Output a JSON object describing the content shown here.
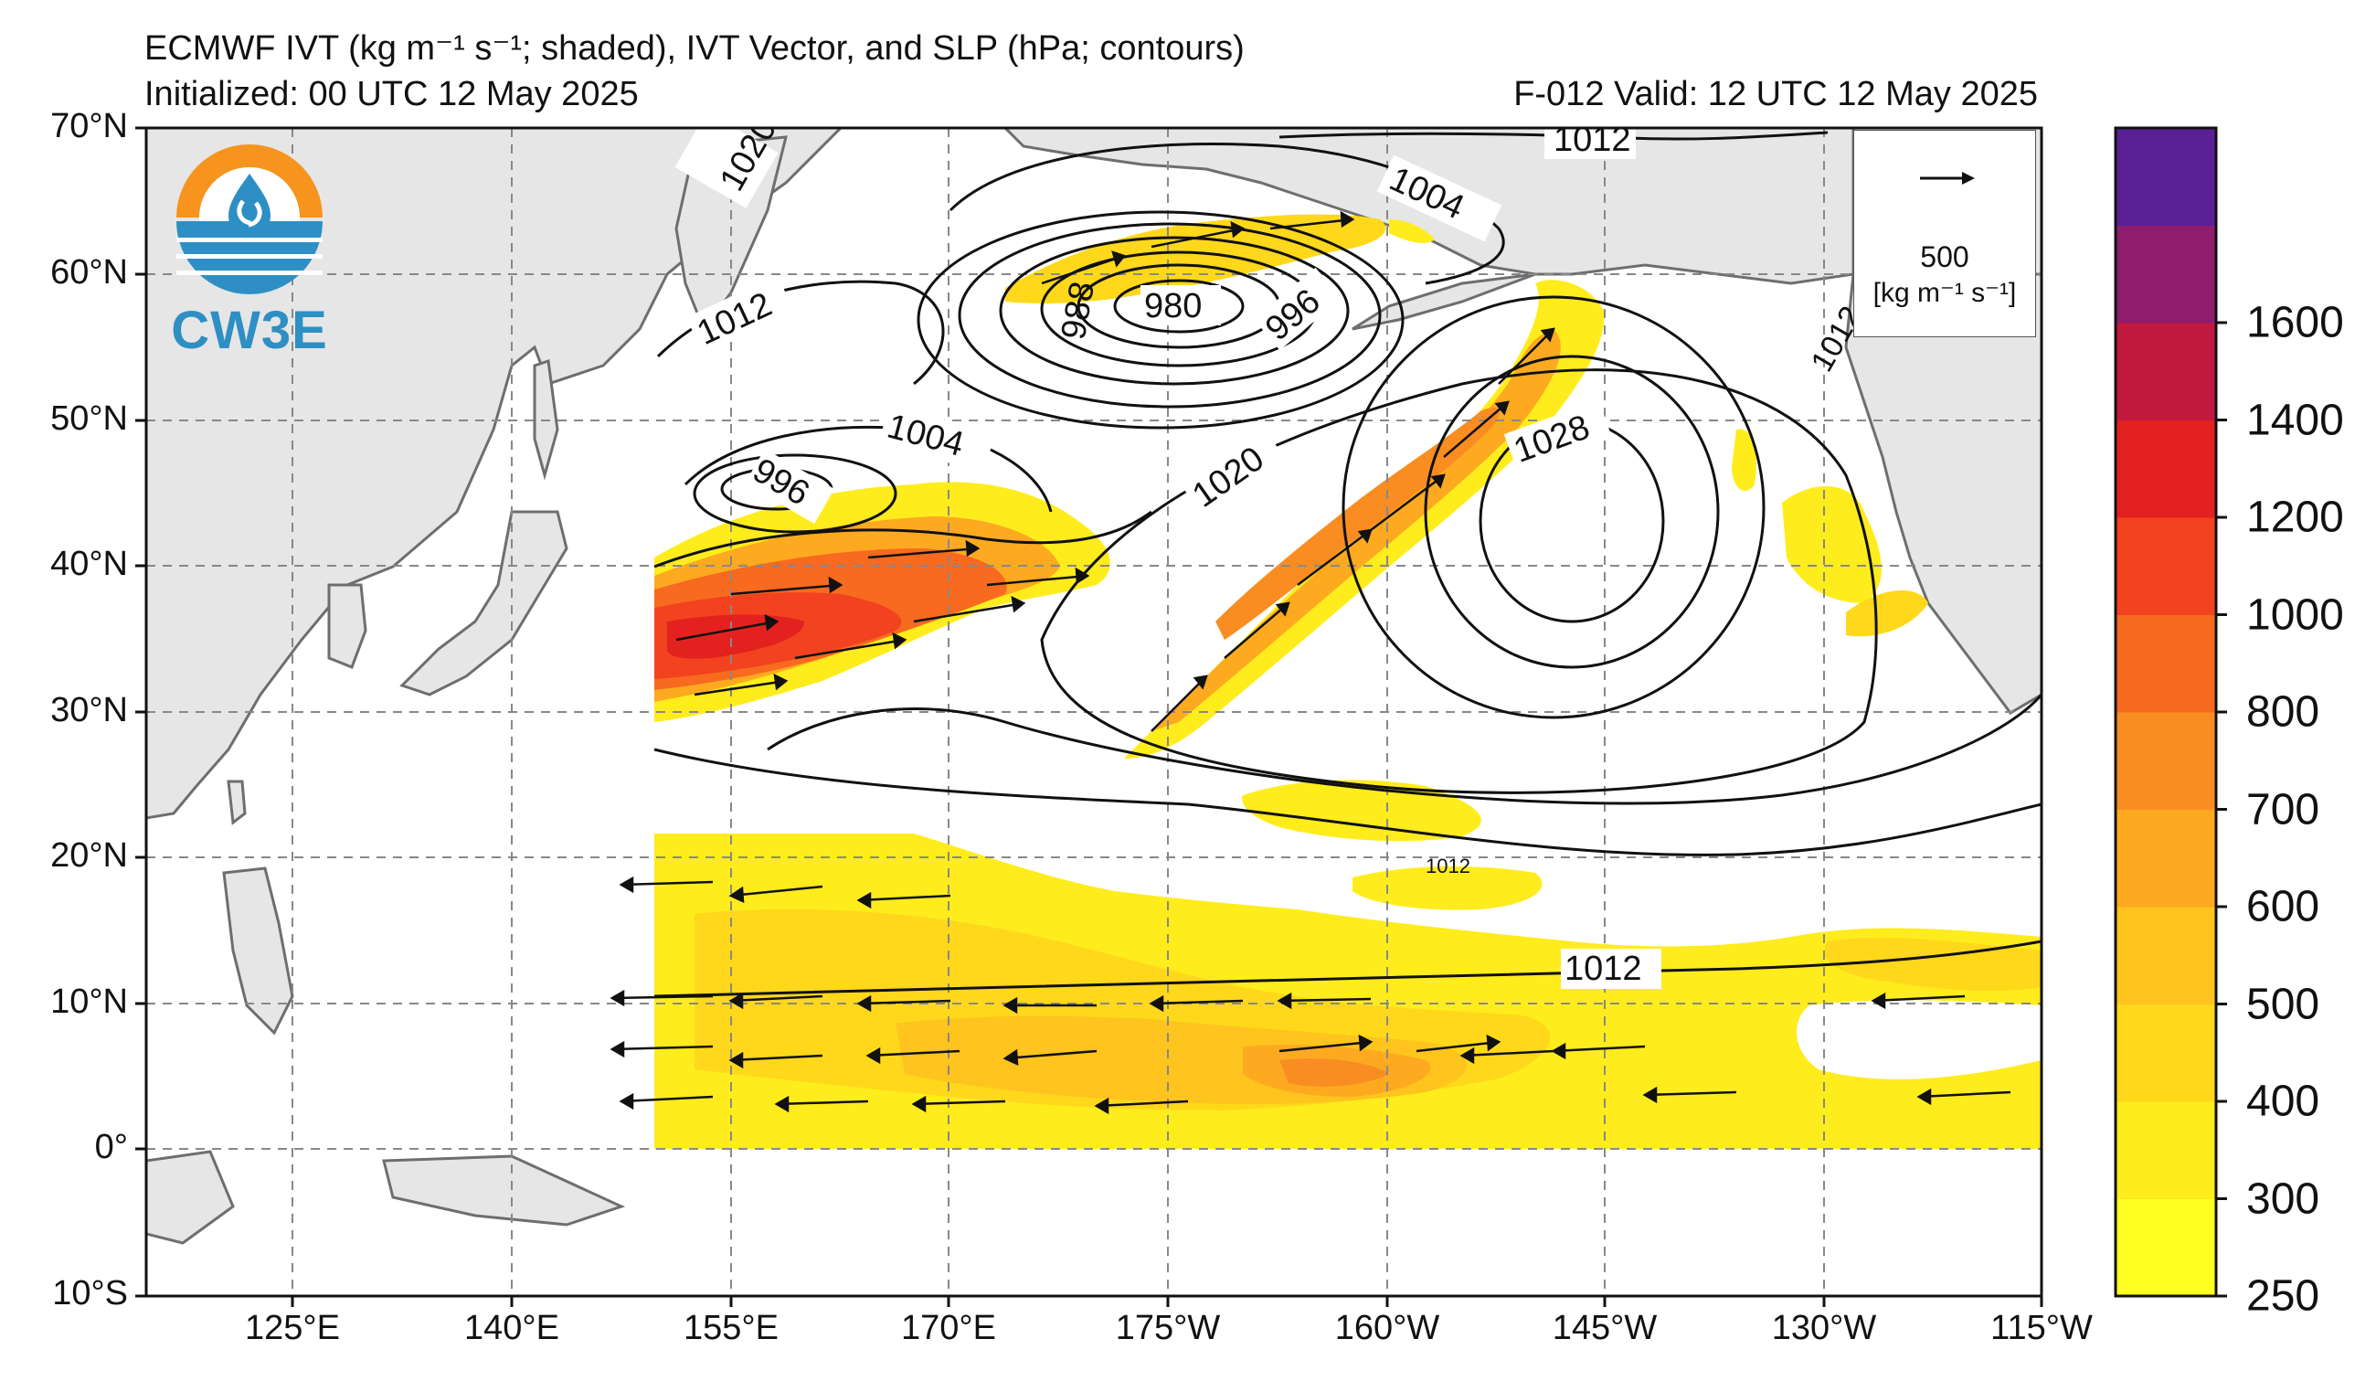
{
  "title": {
    "line1": "ECMWF IVT (kg m⁻¹ s⁻¹; shaded), IVT Vector, and SLP (hPa; contours)",
    "line2": "Initialized: 00 UTC 12 May 2025",
    "valid": "F-012  Valid: 12 UTC 12 May 2025"
  },
  "logo": {
    "text": "CW3E",
    "colors": {
      "orange": "#f7941d",
      "blue": "#2e8fc4"
    }
  },
  "map": {
    "lat_labels": [
      "70°N",
      "60°N",
      "50°N",
      "40°N",
      "30°N",
      "20°N",
      "10°N",
      "0°",
      "10°S"
    ],
    "lon_labels": [
      "125°E",
      "140°E",
      "155°E",
      "170°E",
      "175°W",
      "160°W",
      "145°W",
      "130°W",
      "115°W"
    ],
    "slp_labels": [
      "1012",
      "1020",
      "1004",
      "988",
      "980",
      "996",
      "1012",
      "996",
      "1004",
      "1020",
      "1028",
      "1012",
      "1012",
      "1012"
    ],
    "land_color": "#e6e6e6",
    "coast_color": "#6e6e6e",
    "grid_color": "#888888"
  },
  "reference_vector": {
    "value": "500",
    "unit": "[kg m⁻¹ s⁻¹]"
  },
  "colorbar": {
    "levels": [
      "250",
      "300",
      "400",
      "500",
      "600",
      "700",
      "800",
      "1000",
      "1200",
      "1400",
      "1600"
    ],
    "colors": [
      "#ffff22",
      "#ffec1c",
      "#ffd81b",
      "#ffc41d",
      "#fdaa20",
      "#f98d22",
      "#f76a1f",
      "#f2421f",
      "#e3211f",
      "#c2193e",
      "#8f1c6d",
      "#5a2196"
    ]
  }
}
